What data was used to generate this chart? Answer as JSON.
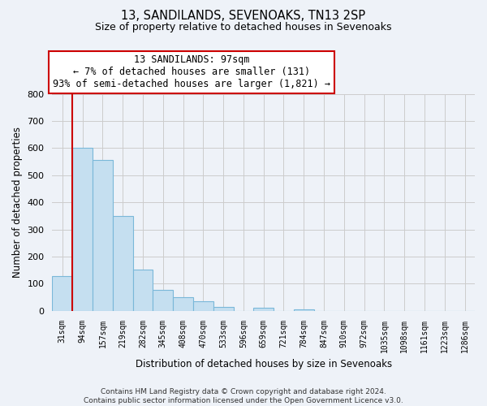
{
  "title1": "13, SANDILANDS, SEVENOAKS, TN13 2SP",
  "title2": "Size of property relative to detached houses in Sevenoaks",
  "xlabel": "Distribution of detached houses by size in Sevenoaks",
  "ylabel": "Number of detached properties",
  "bin_labels": [
    "31sqm",
    "94sqm",
    "157sqm",
    "219sqm",
    "282sqm",
    "345sqm",
    "408sqm",
    "470sqm",
    "533sqm",
    "596sqm",
    "659sqm",
    "721sqm",
    "784sqm",
    "847sqm",
    "910sqm",
    "972sqm",
    "1035sqm",
    "1098sqm",
    "1161sqm",
    "1223sqm",
    "1286sqm"
  ],
  "bar_heights": [
    128,
    602,
    558,
    349,
    152,
    76,
    50,
    34,
    15,
    0,
    11,
    0,
    6,
    0,
    0,
    0,
    0,
    0,
    0,
    0,
    0
  ],
  "bar_color": "#c5dff0",
  "bar_edge_color": "#7ab8d9",
  "annotation_line1": "13 SANDILANDS: 97sqm",
  "annotation_line2": "← 7% of detached houses are smaller (131)",
  "annotation_line3": "93% of semi-detached houses are larger (1,821) →",
  "annotation_box_color": "#ffffff",
  "annotation_box_edge_color": "#cc0000",
  "property_line_color": "#cc0000",
  "property_line_x": 1,
  "ylim": [
    0,
    800
  ],
  "yticks": [
    0,
    100,
    200,
    300,
    400,
    500,
    600,
    700,
    800
  ],
  "footer1": "Contains HM Land Registry data © Crown copyright and database right 2024.",
  "footer2": "Contains public sector information licensed under the Open Government Licence v3.0.",
  "grid_color": "#cccccc",
  "background_color": "#eef2f8"
}
